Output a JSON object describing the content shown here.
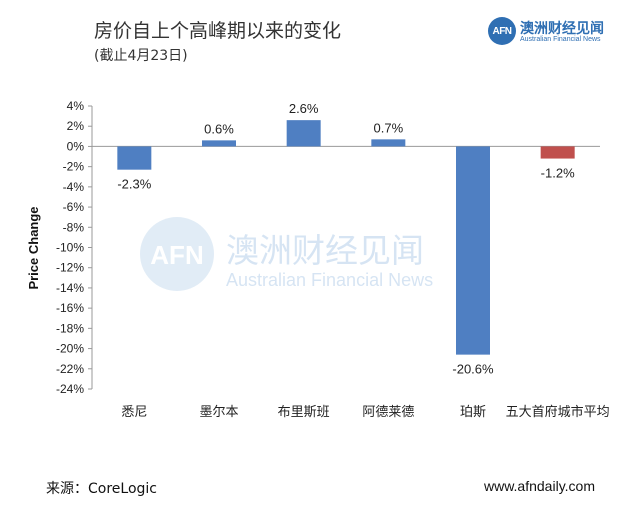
{
  "header": {
    "title": "房价自上个高峰期以来的变化",
    "subtitle": "(截止4月23日)"
  },
  "logo": {
    "mark": "AFN",
    "name_cn": "澳洲财经见闻",
    "name_en": "Australian Financial News"
  },
  "watermark": {
    "mark": "AFN",
    "name_cn": "澳洲财经见闻",
    "name_en": "Australian Financial News"
  },
  "footer": {
    "source": "来源：CoreLogic",
    "website": "www.afndaily.com"
  },
  "colors": {
    "bar_positive": "#4f7fc2",
    "bar_negative_highlight": "#c0504d",
    "watermark": "#c9dcef"
  },
  "chart_data": {
    "type": "bar",
    "title": "房价自上个高峰期以来的变化",
    "subtitle": "(截止4月23日)",
    "xlabel": "",
    "ylabel": "Price Change",
    "categories": [
      "悉尼",
      "墨尔本",
      "布里斯班",
      "阿德莱德",
      "珀斯",
      "五大首府城市平均"
    ],
    "values": [
      -2.3,
      0.6,
      2.6,
      0.7,
      -20.6,
      -1.2
    ],
    "data_labels": [
      "-2.3%",
      "0.6%",
      "2.6%",
      "0.7%",
      "-20.6%",
      "-1.2%"
    ],
    "bar_colors": [
      "#4f7fc2",
      "#4f7fc2",
      "#4f7fc2",
      "#4f7fc2",
      "#4f7fc2",
      "#c0504d"
    ],
    "ylim": [
      -24,
      4
    ],
    "yticks": [
      4,
      2,
      0,
      -2,
      -4,
      -6,
      -8,
      -10,
      -12,
      -14,
      -16,
      -18,
      -20,
      -22,
      -24
    ],
    "ytick_labels": [
      "4%",
      "2%",
      "0%",
      "-2%",
      "-4%",
      "-6%",
      "-8%",
      "-10%",
      "-12%",
      "-14%",
      "-16%",
      "-18%",
      "-20%",
      "-22%",
      "-24%"
    ],
    "grid": false,
    "legend": "none"
  }
}
